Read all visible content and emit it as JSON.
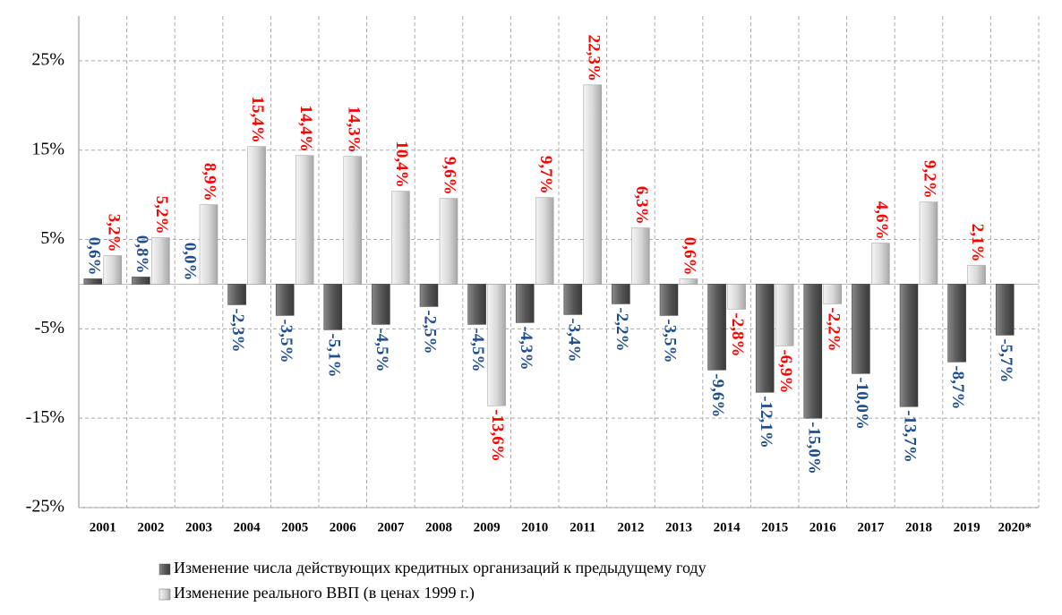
{
  "chart_data": {
    "type": "bar",
    "categories": [
      "2001",
      "2002",
      "2003",
      "2004",
      "2005",
      "2006",
      "2007",
      "2008",
      "2009",
      "2010",
      "2011",
      "2012",
      "2013",
      "2014",
      "2015",
      "2016",
      "2017",
      "2018",
      "2019",
      "2020*"
    ],
    "series": [
      {
        "name": "Изменение числа действующих кредитных организаций к предыдущему году",
        "color": "#595959",
        "label_color": "#1f4e8c",
        "values": [
          0.6,
          0.8,
          0.0,
          -2.3,
          -3.5,
          -5.1,
          -4.5,
          -2.5,
          -4.5,
          -4.3,
          -3.4,
          -2.2,
          -3.5,
          -9.6,
          -12.1,
          -15.0,
          -10.0,
          -13.7,
          -8.7,
          -5.7
        ],
        "value_labels": [
          "0,6%",
          "0,8%",
          "0,0%",
          "-2,3%",
          "-3,5%",
          "-5,1%",
          "-4,5%",
          "-2,5%",
          "-4,5%",
          "-4,3%",
          "-3,4%",
          "-2,2%",
          "-3,5%",
          "-9,6%",
          "-12,1%",
          "-15,0%",
          "-10,0%",
          "-13,7%",
          "-8,7%",
          "-5,7%"
        ]
      },
      {
        "name": "Изменение реального ВВП (в ценах 1999 г.)",
        "color": "#d9d9d9",
        "label_color": "#ff0000",
        "values": [
          3.2,
          5.2,
          8.9,
          15.4,
          14.4,
          14.3,
          10.4,
          9.6,
          -13.6,
          9.7,
          22.3,
          6.3,
          0.6,
          -2.8,
          -6.9,
          -2.2,
          4.6,
          9.2,
          2.1,
          null
        ],
        "value_labels": [
          "3,2%",
          "5,2%",
          "8,9%",
          "15,4%",
          "14,4%",
          "14,3%",
          "10,4%",
          "9,6%",
          "-13,6%",
          "9,7%",
          "22,3%",
          "6,3%",
          "0,6%",
          "-2,8%",
          "-6,9%",
          "-2,2%",
          "4,6%",
          "9,2%",
          "2,1%",
          null
        ]
      }
    ],
    "ylim": [
      -25,
      30
    ],
    "yticks": [
      {
        "value": -25,
        "label": "-25%"
      },
      {
        "value": -15,
        "label": "-15%"
      },
      {
        "value": -5,
        "label": "-5%"
      },
      {
        "value": 5,
        "label": "5%"
      },
      {
        "value": 15,
        "label": "15%"
      },
      {
        "value": 25,
        "label": "25%"
      }
    ],
    "grid": true
  }
}
